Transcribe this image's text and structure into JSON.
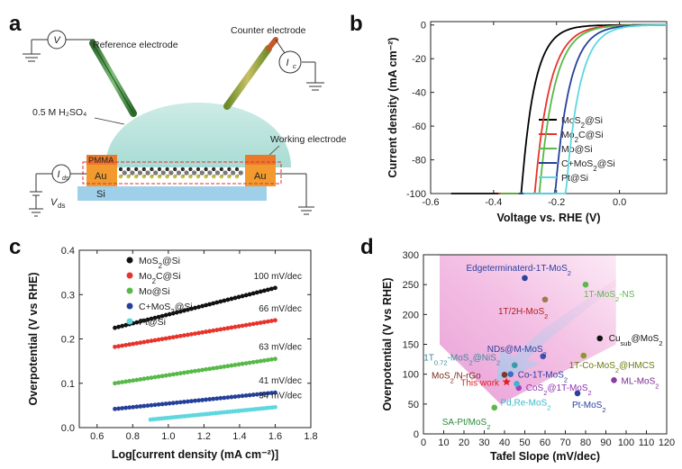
{
  "panels": {
    "a": {
      "label": "a",
      "v_meter": "V",
      "ic_meter": "I",
      "ic_sub": "c",
      "ids_meter": "I",
      "ids_sub": "ds",
      "vds": "V",
      "vds_sub": "ds",
      "reference_electrode": "Reference electrode",
      "counter_electrode": "Counter electrode",
      "electrolyte": "0.5 M H₂SO₄",
      "working_electrode": "Working electrode",
      "pmma": "PMMA",
      "au_left": "Au",
      "au_right": "Au",
      "si": "Si",
      "colors": {
        "droplet": "#bfe6e0",
        "au": "#f29a2e",
        "pmma": "#ea7a2a",
        "si": "#9fd0ea",
        "dash": "#e03030"
      }
    },
    "b": {
      "label": "b"
    },
    "c": {
      "label": "c"
    },
    "d": {
      "label": "d"
    }
  },
  "chart_data": [
    {
      "panel": "b",
      "type": "line",
      "xlabel": "Voltage vs. RHE (V)",
      "ylabel": "Current density (mA cm⁻²)",
      "xlim": [
        -0.6,
        0.15
      ],
      "ylim": [
        -100,
        2
      ],
      "xticks": [
        -0.6,
        -0.4,
        -0.2,
        0.0
      ],
      "xtick_labels": [
        "-0.6",
        "-0.4",
        "-0.2",
        "0.0"
      ],
      "yticks": [
        0,
        -20,
        -40,
        -60,
        -80,
        -100
      ],
      "ytick_labels": [
        "0",
        "-20",
        "-40",
        "-60",
        "-80",
        "-100"
      ],
      "series": [
        {
          "name": "MoS₂@Si",
          "color": "#000000",
          "onset": -0.12,
          "kappa": 24,
          "x_start": -0.535
        },
        {
          "name": "Mo₂C@Si",
          "color": "#e8332a",
          "onset": -0.05,
          "kappa": 21,
          "x_start": -0.385
        },
        {
          "name": "Mo@Si",
          "color": "#57b947",
          "onset": -0.035,
          "kappa": 21,
          "x_start": -0.378
        },
        {
          "name": "C+MoS₂@Si",
          "color": "#25409a",
          "onset": 0.005,
          "kappa": 22,
          "x_start": -0.32
        },
        {
          "name": "Pt@Si",
          "color": "#5ed7df",
          "onset": 0.03,
          "kappa": 23,
          "x_start": -0.305
        }
      ]
    },
    {
      "panel": "c",
      "type": "scatter",
      "xlabel": "Log[current density (mA cm⁻²)]",
      "ylabel": "Overpotential (V vs RHE)",
      "xlim": [
        0.5,
        1.8
      ],
      "ylim": [
        0.0,
        0.4
      ],
      "xticks": [
        0.6,
        0.8,
        1.0,
        1.2,
        1.4,
        1.6,
        1.8
      ],
      "xtick_labels": [
        "0.6",
        "0.8",
        "1.0",
        "1.2",
        "1.4",
        "1.6",
        "1.8"
      ],
      "yticks": [
        0.0,
        0.1,
        0.2,
        0.3,
        0.4
      ],
      "ytick_labels": [
        "0.0",
        "0.1",
        "0.2",
        "0.3",
        "0.4"
      ],
      "series": [
        {
          "name": "MoS₂@Si",
          "color": "#111111",
          "x_range": [
            0.7,
            1.6
          ],
          "y_range": [
            0.225,
            0.315
          ],
          "tafel_label": "100 mV/dec"
        },
        {
          "name": "Mo₂C@Si",
          "color": "#e8332a",
          "x_range": [
            0.7,
            1.6
          ],
          "y_range": [
            0.182,
            0.242
          ],
          "tafel_label": "66 mV/dec"
        },
        {
          "name": "Mo@Si",
          "color": "#57b947",
          "x_range": [
            0.7,
            1.6
          ],
          "y_range": [
            0.1,
            0.155
          ],
          "tafel_label": "63 mV/dec"
        },
        {
          "name": "C+MoS₂@Si",
          "color": "#25409a",
          "x_range": [
            0.7,
            1.6
          ],
          "y_range": [
            0.042,
            0.079
          ],
          "tafel_label": "41 mV/dec"
        },
        {
          "name": "Pt@Si",
          "color": "#5ed7df",
          "x_range": [
            0.9,
            1.6
          ],
          "y_range": [
            0.018,
            0.046
          ],
          "tafel_label": "34 mV/dec"
        }
      ]
    },
    {
      "panel": "d",
      "type": "scatter",
      "xlabel": "Tafel Slope (mV/dec)",
      "ylabel": "Overpotential (V vs RHE)",
      "xlim": [
        0,
        120
      ],
      "ylim": [
        0,
        300
      ],
      "xticks": [
        0,
        10,
        20,
        30,
        40,
        50,
        60,
        70,
        80,
        90,
        100,
        110,
        120
      ],
      "yticks": [
        0,
        50,
        100,
        150,
        200,
        250,
        300
      ],
      "points": [
        {
          "label": "Edgeterminaterd-1T-MoS₂",
          "x": 50,
          "y": 261,
          "color": "#2a3fa0",
          "text_color": "#2a3fa0"
        },
        {
          "label": "1T-MoS₂-NS",
          "x": 80,
          "y": 250,
          "color": "#5cb84a",
          "text_color": "#5cb84a"
        },
        {
          "label": "1T/2H-MoS₂",
          "x": 60,
          "y": 225,
          "color": "#a0784a",
          "text_color": "#b02020"
        },
        {
          "label": "Cu_sub@MoS₂",
          "x": 87,
          "y": 160,
          "color": "#111111",
          "text_color": "#111111"
        },
        {
          "label": "NDs@M-MoS₂",
          "x": 59,
          "y": 130,
          "color": "#3a55b0",
          "text_color": "#2a3fa0"
        },
        {
          "label": "1T-Co-MoS₂@HMCS",
          "x": 79,
          "y": 131,
          "color": "#8a9a2a",
          "text_color": "#6a7a10"
        },
        {
          "label": "1T0.72-MoS₂@NiS₂",
          "x": 45,
          "y": 115,
          "color": "#3a9aa8",
          "text_color": "#3a8a9a"
        },
        {
          "label": "MoS₂/N-rGo",
          "x": 40,
          "y": 99,
          "color": "#7a3a2a",
          "text_color": "#7a2a1a"
        },
        {
          "label": "Co-1T-MoS₂",
          "x": 43,
          "y": 100,
          "color": "#3a70c0",
          "text_color": "#2a3fa0"
        },
        {
          "label": "ML-MoS₂",
          "x": 94,
          "y": 90,
          "color": "#8a3aa0",
          "text_color": "#7a2a90"
        },
        {
          "label": "This work",
          "x": 41,
          "y": 87,
          "color": "#e02020",
          "text_color": "#e02020",
          "star": true
        },
        {
          "label": "CoS₂@1T-MoS₂",
          "x": 47,
          "y": 77,
          "color": "#a040c0",
          "text_color": "#9030b0"
        },
        {
          "label": "Pd,Re-MoS₂",
          "x": 46,
          "y": 84,
          "color": "#38b8c8",
          "text_color": "#38b8c8"
        },
        {
          "label": "Pt-MoS₂",
          "x": 76,
          "y": 68,
          "color": "#2a3fa0",
          "text_color": "#2a3fa0"
        },
        {
          "label": "SA-Pt/MoS₂",
          "x": 35,
          "y": 44,
          "color": "#5cb84a",
          "text_color": "#2a8a3a"
        }
      ]
    }
  ]
}
